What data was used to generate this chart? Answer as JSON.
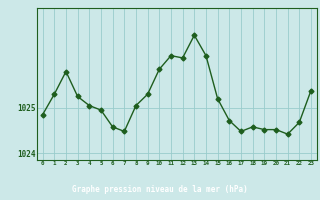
{
  "x": [
    0,
    1,
    2,
    3,
    4,
    5,
    6,
    7,
    8,
    9,
    10,
    11,
    12,
    13,
    14,
    15,
    16,
    17,
    18,
    19,
    20,
    21,
    22,
    23
  ],
  "y": [
    1024.85,
    1025.3,
    1025.8,
    1025.25,
    1025.05,
    1024.95,
    1024.58,
    1024.48,
    1025.05,
    1025.3,
    1025.85,
    1026.15,
    1026.1,
    1026.6,
    1026.15,
    1025.2,
    1024.72,
    1024.48,
    1024.58,
    1024.52,
    1024.52,
    1024.42,
    1024.68,
    1025.38
  ],
  "line_color": "#1e5e1e",
  "marker": "D",
  "marker_size": 2.5,
  "bg_color": "#cce8e8",
  "grid_color": "#99cccc",
  "xlabel": "Graphe pression niveau de la mer (hPa)",
  "xlabel_color": "#1a4a1a",
  "xlabel_bg": "#2d6e2d",
  "ytick_labels": [
    "1024",
    "1025"
  ],
  "ytick_values": [
    1024.0,
    1025.0
  ],
  "ylim": [
    1023.85,
    1027.2
  ],
  "xlim": [
    -0.5,
    23.5
  ],
  "xticks": [
    0,
    1,
    2,
    3,
    4,
    5,
    6,
    7,
    8,
    9,
    10,
    11,
    12,
    13,
    14,
    15,
    16,
    17,
    18,
    19,
    20,
    21,
    22,
    23
  ],
  "tick_color": "#1e5e1e",
  "spine_color": "#1e5e1e"
}
